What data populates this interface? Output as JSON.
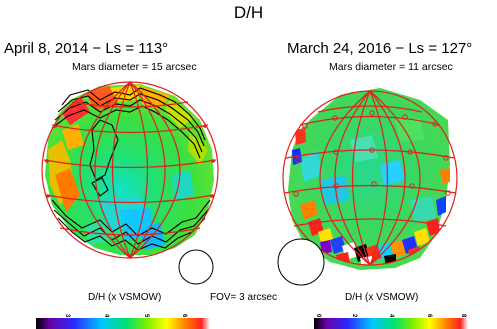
{
  "title": "D/H",
  "left_panel": {
    "title": "April 8, 2014 − Ls = 113°",
    "subtitle": "Mars diameter = 15 arcsec",
    "colorbar_label": "D/H (x VSMOW)",
    "colorbar_ticks": [
      "3",
      "4",
      "5",
      "6"
    ]
  },
  "right_panel": {
    "title": "March 24, 2016 − Ls = 127°",
    "subtitle": "Mars diameter = 11 arcsec",
    "colorbar_label": "D/H (x VSMOW)",
    "colorbar_ticks": [
      "0",
      "2",
      "4",
      "6",
      "8"
    ]
  },
  "fov_label": "FOV= 3 arcsec",
  "colors": {
    "grid": "#e02020",
    "colormap": [
      "#000000",
      "#6a00a8",
      "#2a2aff",
      "#00c8ff",
      "#00e070",
      "#7cf000",
      "#ffff00",
      "#ff8000",
      "#ff2020",
      "#ffffff"
    ]
  }
}
